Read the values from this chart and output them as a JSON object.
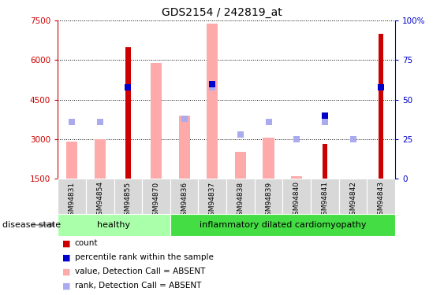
{
  "title": "GDS2154 / 242819_at",
  "samples": [
    "GSM94831",
    "GSM94854",
    "GSM94855",
    "GSM94870",
    "GSM94836",
    "GSM94837",
    "GSM94838",
    "GSM94839",
    "GSM94840",
    "GSM94841",
    "GSM94842",
    "GSM94843"
  ],
  "count_values": [
    null,
    null,
    6500,
    null,
    null,
    null,
    null,
    null,
    null,
    2800,
    null,
    7000
  ],
  "pink_bar_values": [
    2900,
    3000,
    null,
    5900,
    3900,
    7400,
    2500,
    3050,
    1600,
    null,
    1450,
    null
  ],
  "rank_percentile_vals": [
    null,
    null,
    58,
    null,
    null,
    60,
    null,
    null,
    null,
    40,
    null,
    58
  ],
  "light_blue_rank_vals": [
    36,
    36,
    null,
    null,
    38,
    58,
    28,
    36,
    25,
    36,
    25,
    null
  ],
  "ylim_left": [
    1500,
    7500
  ],
  "ylim_right": [
    0,
    100
  ],
  "yticks_left": [
    1500,
    3000,
    4500,
    6000,
    7500
  ],
  "yticks_right": [
    0,
    25,
    50,
    75,
    100
  ],
  "ytick_right_labels": [
    "0",
    "25",
    "50",
    "75",
    "100%"
  ],
  "healthy_count": 4,
  "disease_label": "disease state",
  "group1_label": "healthy",
  "group2_label": "inflammatory dilated cardiomyopathy",
  "legend_items": [
    {
      "label": "count",
      "color": "#cc0000"
    },
    {
      "label": "percentile rank within the sample",
      "color": "#0000cc"
    },
    {
      "label": "value, Detection Call = ABSENT",
      "color": "#ffaaaa"
    },
    {
      "label": "rank, Detection Call = ABSENT",
      "color": "#aaaaee"
    }
  ],
  "count_color": "#cc0000",
  "percentile_color": "#0000cc",
  "pink_color": "#ffaaaa",
  "light_blue_color": "#aaaaee",
  "group1_color": "#aaffaa",
  "group2_color": "#44dd44",
  "bar_width": 0.4,
  "count_bar_width": 0.18
}
